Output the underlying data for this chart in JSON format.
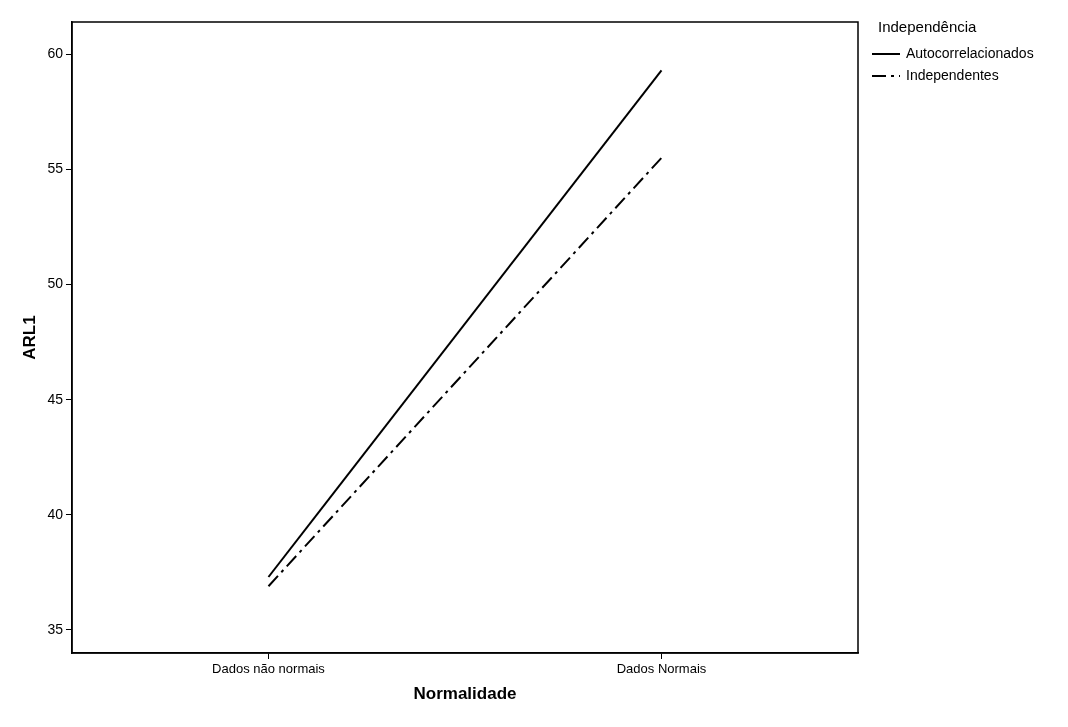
{
  "chart_data": {
    "type": "line",
    "xlabel": "Normalidade",
    "ylabel": "ARL1",
    "legend_title": "Independência",
    "categories": [
      "Dados não normais",
      "Dados Normais"
    ],
    "series": [
      {
        "name": "Autocorrelacionados",
        "color": "#000000",
        "values": [
          37.3,
          59.3
        ],
        "line_style": "solid"
      },
      {
        "name": "Independentes",
        "color": "#000000",
        "values": [
          36.9,
          55.5
        ],
        "line_style": "dashdot"
      }
    ],
    "ylim": [
      34,
      61.4
    ],
    "yticks": [
      35,
      40,
      45,
      50,
      55,
      60
    ],
    "grid": false,
    "legend": "top right",
    "marker": "none"
  }
}
